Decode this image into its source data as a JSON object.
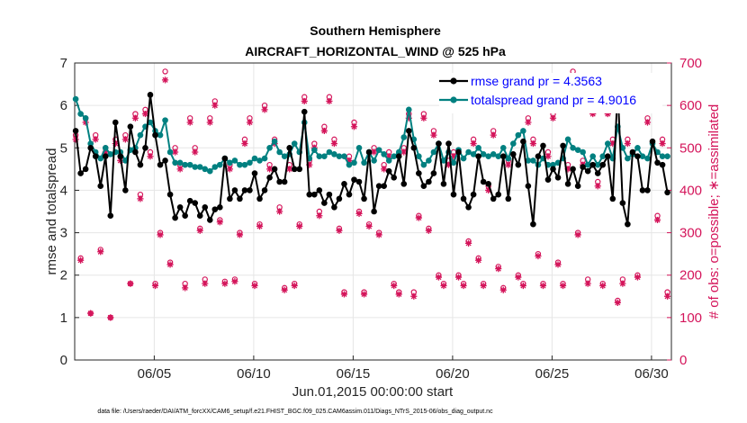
{
  "chart_data": {
    "type": "line",
    "title": "Southern Hemisphere",
    "subtitle": "AIRCRAFT_HORIZONTAL_WIND @ 525 hPa",
    "xlabel": "Jun.01,2015 00:00:00 start",
    "ylabel": "rmse and totalspread",
    "ylabel_right": "# of obs: o=possible; ∗=assimilated",
    "footer": "data file: /Users/raeder/DAI/ATM_forcXX/CAM6_setup/f.e21.FHIST_BGC.f09_025.CAM6assim.011/Diags_NTrS_2015-06/obs_diag_output.nc",
    "xlim": [
      1.0,
      31.0
    ],
    "ylim": [
      0,
      7
    ],
    "ylim_right": [
      0,
      700
    ],
    "grid": true,
    "legend_position": "top-right",
    "x_ticks": [
      5,
      10,
      15,
      20,
      25,
      30
    ],
    "x_tick_labels": [
      "06/05",
      "06/10",
      "06/15",
      "06/20",
      "06/25",
      "06/30"
    ],
    "y_ticks": [
      "0",
      "1",
      "2",
      "3",
      "4",
      "5",
      "6",
      "7"
    ],
    "y_right_ticks": [
      "0",
      "100",
      "200",
      "300",
      "400",
      "500",
      "600",
      "700"
    ],
    "colors": {
      "rmse": "#000000",
      "spread": "#008080",
      "obs": "#d4145a",
      "grid": "#e6e6e6",
      "legend_text": "#0000ff"
    },
    "series": [
      {
        "name": "rmse grand pr = 4.3563",
        "x": [
          1.05,
          1.3,
          1.55,
          1.8,
          2.05,
          2.3,
          2.55,
          2.8,
          3.05,
          3.3,
          3.55,
          3.8,
          4.05,
          4.3,
          4.55,
          4.8,
          5.05,
          5.3,
          5.55,
          5.8,
          6.05,
          6.3,
          6.55,
          6.8,
          7.05,
          7.3,
          7.55,
          7.8,
          8.05,
          8.3,
          8.55,
          8.8,
          9.05,
          9.3,
          9.55,
          9.8,
          10.05,
          10.3,
          10.55,
          10.8,
          11.05,
          11.3,
          11.55,
          11.8,
          12.05,
          12.3,
          12.55,
          12.8,
          13.05,
          13.3,
          13.55,
          13.8,
          14.05,
          14.3,
          14.55,
          14.8,
          15.05,
          15.3,
          15.55,
          15.8,
          16.05,
          16.3,
          16.55,
          16.8,
          17.05,
          17.3,
          17.55,
          17.8,
          18.05,
          18.3,
          18.55,
          18.8,
          19.05,
          19.3,
          19.55,
          19.8,
          20.05,
          20.3,
          20.55,
          20.8,
          21.05,
          21.3,
          21.55,
          21.8,
          22.05,
          22.3,
          22.55,
          22.8,
          23.05,
          23.3,
          23.55,
          23.8,
          24.05,
          24.3,
          24.55,
          24.8,
          25.05,
          25.3,
          25.55,
          25.8,
          26.05,
          26.3,
          26.55,
          26.8,
          27.05,
          27.3,
          27.55,
          27.8,
          28.05,
          28.3,
          28.55,
          28.8,
          29.05,
          29.3,
          29.55,
          29.8,
          30.05,
          30.3,
          30.55,
          30.8
        ],
        "values": [
          5.4,
          4.4,
          4.5,
          5.0,
          4.8,
          4.1,
          4.8,
          3.4,
          5.6,
          4.8,
          4.0,
          5.5,
          4.9,
          4.6,
          5.0,
          6.25,
          5.3,
          4.6,
          4.7,
          3.9,
          3.35,
          3.6,
          3.4,
          3.75,
          3.7,
          3.4,
          3.6,
          3.3,
          3.55,
          3.6,
          4.75,
          3.8,
          4.0,
          3.8,
          4.0,
          4.0,
          4.4,
          3.8,
          4.0,
          4.3,
          4.5,
          4.2,
          4.2,
          5.0,
          4.5,
          4.5,
          5.85,
          3.9,
          3.9,
          4.0,
          3.7,
          3.9,
          3.6,
          3.8,
          4.15,
          3.9,
          4.25,
          4.2,
          3.8,
          4.9,
          3.5,
          4.1,
          4.1,
          4.45,
          4.3,
          4.8,
          4.15,
          5.4,
          5.0,
          4.4,
          4.1,
          4.2,
          4.4,
          5.1,
          4.15,
          5.1,
          3.9,
          4.9,
          3.8,
          3.6,
          3.9,
          4.8,
          4.2,
          4.15,
          3.8,
          3.9,
          4.8,
          3.8,
          4.85,
          4.6,
          5.15,
          4.1,
          3.2,
          4.8,
          5.05,
          4.25,
          4.5,
          4.3,
          5.05,
          4.15,
          4.5,
          4.1,
          4.55,
          4.45,
          4.6,
          4.4,
          4.6,
          4.8,
          3.8,
          6.4,
          3.7,
          3.2,
          4.9,
          4.8,
          4.0,
          4.0,
          5.15,
          4.65,
          4.6,
          3.95
        ]
      },
      {
        "name": "totalspread grand pr = 4.9016",
        "x": [
          1.05,
          1.3,
          1.55,
          1.8,
          2.05,
          2.3,
          2.55,
          2.8,
          3.05,
          3.3,
          3.55,
          3.8,
          4.05,
          4.3,
          4.55,
          4.8,
          5.05,
          5.3,
          5.55,
          5.8,
          6.05,
          6.3,
          6.55,
          6.8,
          7.05,
          7.3,
          7.55,
          7.8,
          8.05,
          8.3,
          8.55,
          8.8,
          9.05,
          9.3,
          9.55,
          9.8,
          10.05,
          10.3,
          10.55,
          10.8,
          11.05,
          11.3,
          11.55,
          11.8,
          12.05,
          12.3,
          12.55,
          12.8,
          13.05,
          13.3,
          13.55,
          13.8,
          14.05,
          14.3,
          14.55,
          14.8,
          15.05,
          15.3,
          15.55,
          15.8,
          16.05,
          16.3,
          16.55,
          16.8,
          17.05,
          17.3,
          17.55,
          17.8,
          18.05,
          18.3,
          18.55,
          18.8,
          19.05,
          19.3,
          19.55,
          19.8,
          20.05,
          20.3,
          20.55,
          20.8,
          21.05,
          21.3,
          21.55,
          21.8,
          22.05,
          22.3,
          22.55,
          22.8,
          23.05,
          23.3,
          23.55,
          23.8,
          24.05,
          24.3,
          24.55,
          24.8,
          25.05,
          25.3,
          25.55,
          25.8,
          26.05,
          26.3,
          26.55,
          26.8,
          27.05,
          27.3,
          27.55,
          27.8,
          28.05,
          28.3,
          28.55,
          28.8,
          29.05,
          29.3,
          29.55,
          29.8,
          30.05,
          30.3,
          30.55,
          30.8
        ],
        "values": [
          6.15,
          5.8,
          5.7,
          5.1,
          4.9,
          4.75,
          5.0,
          4.85,
          4.9,
          4.9,
          4.7,
          4.95,
          5.0,
          5.3,
          5.5,
          5.6,
          5.4,
          5.3,
          5.65,
          4.9,
          4.65,
          4.65,
          4.6,
          4.6,
          4.55,
          4.55,
          4.5,
          4.45,
          4.55,
          4.6,
          4.75,
          4.65,
          4.7,
          4.6,
          4.6,
          4.65,
          4.75,
          4.7,
          4.75,
          5.0,
          5.15,
          4.9,
          4.8,
          4.85,
          5.1,
          4.9,
          5.6,
          4.75,
          4.95,
          4.8,
          4.8,
          4.9,
          4.85,
          4.8,
          4.8,
          4.6,
          4.65,
          5.0,
          4.65,
          4.9,
          4.7,
          4.95,
          4.85,
          4.7,
          4.8,
          4.9,
          5.25,
          5.9,
          5.2,
          4.8,
          4.6,
          4.7,
          4.9,
          5.1,
          4.7,
          4.9,
          4.65,
          4.95,
          4.75,
          4.9,
          4.85,
          5.0,
          4.85,
          4.8,
          4.85,
          4.8,
          5.0,
          4.75,
          5.1,
          5.3,
          5.4,
          4.7,
          4.7,
          4.6,
          4.75,
          4.6,
          4.6,
          4.65,
          4.75,
          5.2,
          5.0,
          4.95,
          4.9,
          4.6,
          4.8,
          4.6,
          4.8,
          5.1,
          4.75,
          5.5,
          5.0,
          4.75,
          4.85,
          5.0,
          4.8,
          4.75,
          5.1,
          4.9,
          4.8,
          4.8
        ]
      },
      {
        "name": "possible",
        "x": [
          1.05,
          1.55,
          2.05,
          2.55,
          3.05,
          3.55,
          4.05,
          4.55,
          5.05,
          5.55,
          6.05,
          6.55,
          7.05,
          7.55,
          8.05,
          8.55,
          9.05,
          9.55,
          10.05,
          10.55,
          11.05,
          11.55,
          12.05,
          12.55,
          13.05,
          13.55,
          14.05,
          14.55,
          15.05,
          15.55,
          16.05,
          16.55,
          17.05,
          17.55,
          18.05,
          18.55,
          19.05,
          19.55,
          20.05,
          20.55,
          21.05,
          21.55,
          22.05,
          22.55,
          23.05,
          23.55,
          24.05,
          24.55,
          25.05,
          25.55,
          26.05,
          26.55,
          27.05,
          27.55,
          28.05,
          28.55,
          29.05,
          29.55,
          30.05,
          30.55,
          1.3,
          1.8,
          2.3,
          2.8,
          3.3,
          3.8,
          4.3,
          4.8,
          5.3,
          5.8,
          6.3,
          6.8,
          7.3,
          7.8,
          8.3,
          8.8,
          9.3,
          9.8,
          10.3,
          10.8,
          11.3,
          11.8,
          12.3,
          12.8,
          13.3,
          13.8,
          14.3,
          14.8,
          15.3,
          15.8,
          16.3,
          16.8,
          17.3,
          17.8,
          18.3,
          18.8,
          19.3,
          19.8,
          20.3,
          20.8,
          21.3,
          21.8,
          22.3,
          22.8,
          23.3,
          23.8,
          24.3,
          24.8,
          25.3,
          25.8,
          26.3,
          26.8,
          27.3,
          27.8,
          28.3,
          28.8,
          29.3,
          29.8,
          30.3,
          30.8
        ],
        "values": [
          530,
          570,
          530,
          500,
          520,
          530,
          580,
          590,
          180,
          680,
          500,
          180,
          500,
          190,
          610,
          185,
          190,
          520,
          180,
          600,
          520,
          170,
          180,
          620,
          510,
          550,
          520,
          160,
          560,
          160,
          500,
          460,
          180,
          500,
          160,
          580,
          540,
          180,
          490,
          180,
          520,
          180,
          540,
          170,
          600,
          180,
          520,
          180,
          580,
          180,
          680,
          470,
          590,
          180,
          520,
          190,
          600,
          600,
          670,
          520,
          240,
          110,
          260,
          100,
          480,
          180,
          390,
          490,
          300,
          230,
          460,
          570,
          310,
          570,
          330,
          460,
          300,
          570,
          320,
          460,
          360,
          460,
          320,
          470,
          350,
          620,
          310,
          480,
          350,
          320,
          300,
          490,
          160,
          580,
          340,
          310,
          200,
          470,
          200,
          280,
          240,
          410,
          220,
          470,
          200,
          570,
          250,
          490,
          230,
          460,
          300,
          190,
          420,
          590,
          140,
          520,
          200,
          570,
          340,
          160
        ]
      },
      {
        "name": "assimilated",
        "x": [
          1.05,
          1.55,
          2.05,
          2.55,
          3.05,
          3.55,
          4.05,
          4.55,
          5.05,
          5.55,
          6.05,
          6.55,
          7.05,
          7.55,
          8.05,
          8.55,
          9.05,
          9.55,
          10.05,
          10.55,
          11.05,
          11.55,
          12.05,
          12.55,
          13.05,
          13.55,
          14.05,
          14.55,
          15.05,
          15.55,
          16.05,
          16.55,
          17.05,
          17.55,
          18.05,
          18.55,
          19.05,
          19.55,
          20.05,
          20.55,
          21.05,
          21.55,
          22.05,
          22.55,
          23.05,
          23.55,
          24.05,
          24.55,
          25.05,
          25.55,
          26.05,
          26.55,
          27.05,
          27.55,
          28.05,
          28.55,
          29.05,
          29.55,
          30.05,
          30.55,
          1.3,
          1.8,
          2.3,
          2.8,
          3.3,
          3.8,
          4.3,
          4.8,
          5.3,
          5.8,
          6.3,
          6.8,
          7.3,
          7.8,
          8.3,
          8.8,
          9.3,
          9.8,
          10.3,
          10.8,
          11.3,
          11.8,
          12.3,
          12.8,
          13.3,
          13.8,
          14.3,
          14.8,
          15.3,
          15.8,
          16.3,
          16.8,
          17.3,
          17.8,
          18.3,
          18.8,
          19.3,
          19.8,
          20.3,
          20.8,
          21.3,
          21.8,
          22.3,
          22.8,
          23.3,
          23.8,
          24.3,
          24.8,
          25.3,
          25.8,
          26.3,
          26.8,
          27.3,
          27.8,
          28.3,
          28.8,
          29.3,
          29.8,
          30.3,
          30.8
        ],
        "values": [
          520,
          560,
          520,
          490,
          510,
          520,
          570,
          580,
          175,
          660,
          490,
          170,
          490,
          180,
          600,
          180,
          185,
          510,
          175,
          590,
          510,
          165,
          175,
          610,
          500,
          540,
          510,
          155,
          550,
          155,
          490,
          450,
          175,
          490,
          150,
          570,
          530,
          175,
          480,
          175,
          510,
          175,
          530,
          165,
          590,
          175,
          510,
          175,
          570,
          175,
          660,
          460,
          580,
          175,
          510,
          180,
          590,
          590,
          590,
          510,
          235,
          110,
          255,
          100,
          470,
          180,
          380,
          480,
          295,
          225,
          450,
          560,
          305,
          560,
          325,
          450,
          295,
          560,
          315,
          450,
          350,
          450,
          315,
          460,
          340,
          610,
          305,
          470,
          345,
          315,
          295,
          480,
          155,
          570,
          335,
          305,
          195,
          460,
          195,
          275,
          235,
          400,
          215,
          460,
          195,
          560,
          245,
          480,
          225,
          450,
          295,
          180,
          410,
          580,
          135,
          510,
          195,
          560,
          330,
          150
        ]
      }
    ]
  }
}
